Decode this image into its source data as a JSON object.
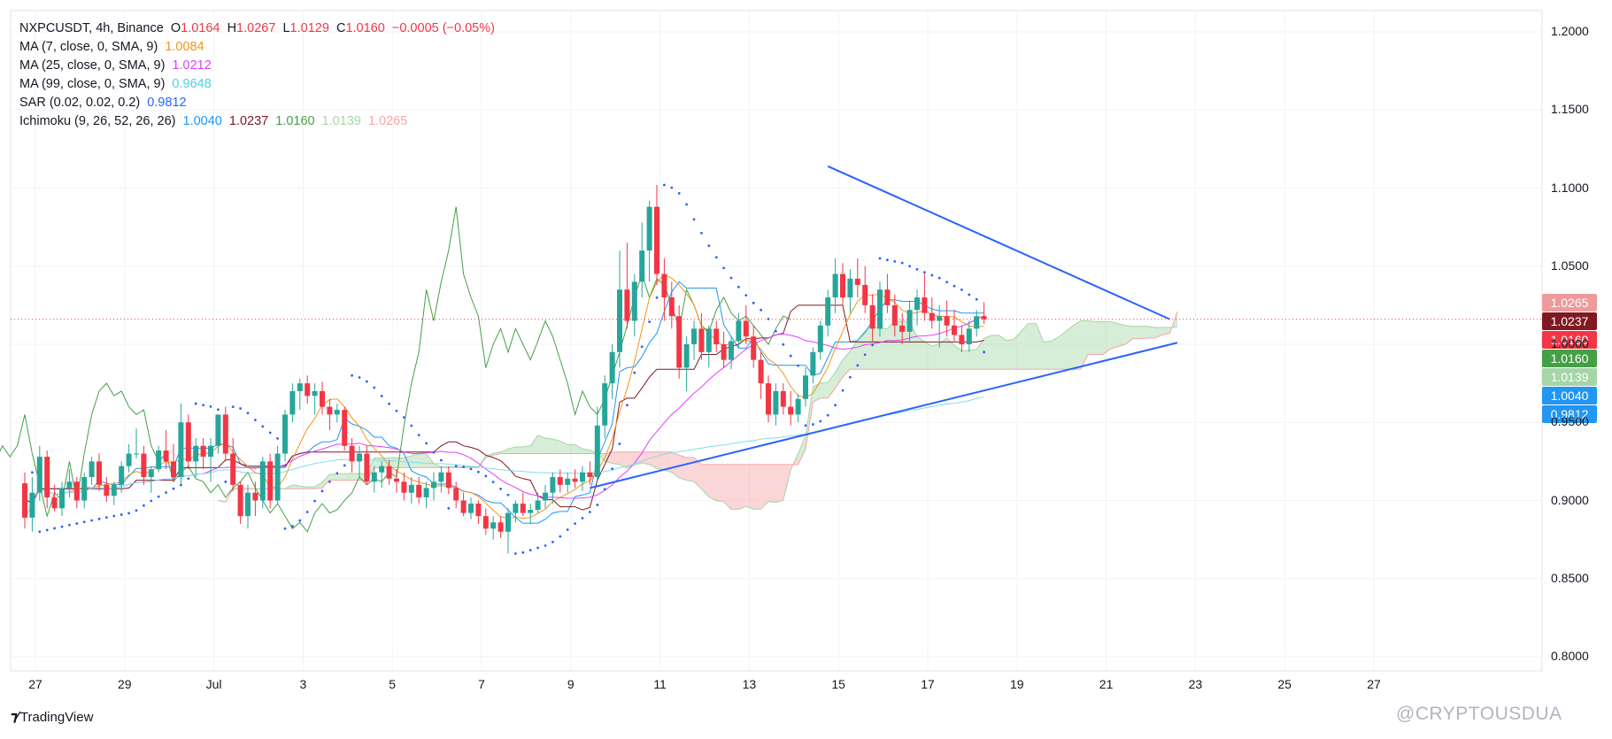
{
  "legend": {
    "symbol": "NXPCUSDT, 4h, Binance",
    "ohlc": {
      "o_label": "O",
      "o": "1.0164",
      "h_label": "H",
      "h": "1.0267",
      "l_label": "L",
      "l": "1.0129",
      "c_label": "C",
      "c": "1.0160",
      "change": "−0.0005 (−0.05%)"
    },
    "indicators": [
      {
        "label": "MA (7, close, 0, SMA, 9)",
        "values": [
          {
            "v": "1.0084",
            "color": "#f7931a"
          }
        ]
      },
      {
        "label": "MA (25, close, 0, SMA, 9)",
        "values": [
          {
            "v": "1.0212",
            "color": "#e040fb"
          }
        ]
      },
      {
        "label": "MA (99, close, 0, SMA, 9)",
        "values": [
          {
            "v": "0.9648",
            "color": "#4dd0e1"
          }
        ]
      },
      {
        "label": "SAR (0.02, 0.02, 0.2)",
        "values": [
          {
            "v": "0.9812",
            "color": "#2962ff"
          }
        ]
      },
      {
        "label": "Ichimoku (9, 26, 52, 26, 26)",
        "values": [
          {
            "v": "1.0040",
            "color": "#2196f3"
          },
          {
            "v": "1.0237",
            "color": "#801922"
          },
          {
            "v": "1.0160",
            "color": "#43a047"
          },
          {
            "v": "1.0139",
            "color": "#a5d6a7"
          },
          {
            "v": "1.0265",
            "color": "#f7a5a5"
          }
        ]
      }
    ]
  },
  "price_tags": [
    {
      "value": "1.0265",
      "bg": "#ef9a9a",
      "price": 1.0265
    },
    {
      "value": "1.0237",
      "bg": "#801922",
      "price": 1.0237
    },
    {
      "value": "1.0160",
      "bg": "#f23645",
      "price": 1.016
    },
    {
      "value": "1.0160",
      "bg": "#43a047",
      "price": 1.016
    },
    {
      "value": "1.0139",
      "bg": "#a5d6a7",
      "price": 1.0139
    },
    {
      "value": "1.0040",
      "bg": "#2196f3",
      "price": 1.004
    },
    {
      "value": "0.9812",
      "bg": "#2196f3",
      "price": 0.9812
    }
  ],
  "brand": {
    "name": "TradingView"
  },
  "watermark": "@CRYPTOUSDUA",
  "chart_data": {
    "type": "candlestick",
    "symbol": "NXPCUSDT",
    "interval": "4h",
    "exchange": "Binance",
    "ylim": [
      0.79,
      1.21
    ],
    "y_ticks": [
      "1.2000",
      "1.1500",
      "1.1000",
      "1.0500",
      "1.0000",
      "0.9500",
      "0.9000",
      "0.8500",
      "0.8000"
    ],
    "x_ticks": [
      "27",
      "29",
      "Jul",
      "3",
      "5",
      "7",
      "9",
      "11",
      "13",
      "15",
      "17",
      "19",
      "21",
      "23",
      "25",
      "27"
    ],
    "colors": {
      "up": "#26a69a",
      "down": "#f23645",
      "trendline": "#2962ff",
      "ma7": "#f7931a",
      "ma25": "#e040fb",
      "ma99": "#80deea",
      "sar": "#2962ff",
      "tenkan": "#2196f3",
      "kijun": "#801922",
      "chikou": "#43a047",
      "cloud_bull": "#a5d6a7",
      "cloud_bear": "#f7a5a5"
    },
    "candles": [
      [
        0.911,
        0.918,
        0.882,
        0.889
      ],
      [
        0.889,
        0.915,
        0.88,
        0.905
      ],
      [
        0.905,
        0.935,
        0.9,
        0.928
      ],
      [
        0.928,
        0.932,
        0.895,
        0.902
      ],
      [
        0.902,
        0.91,
        0.893,
        0.895
      ],
      [
        0.895,
        0.912,
        0.89,
        0.908
      ],
      [
        0.908,
        0.92,
        0.902,
        0.912
      ],
      [
        0.912,
        0.915,
        0.895,
        0.9
      ],
      [
        0.9,
        0.918,
        0.895,
        0.915
      ],
      [
        0.915,
        0.928,
        0.91,
        0.925
      ],
      [
        0.925,
        0.93,
        0.906,
        0.91
      ],
      [
        0.91,
        0.915,
        0.899,
        0.903
      ],
      [
        0.903,
        0.912,
        0.897,
        0.91
      ],
      [
        0.91,
        0.925,
        0.905,
        0.922
      ],
      [
        0.922,
        0.936,
        0.918,
        0.93
      ],
      [
        0.93,
        0.946,
        0.927,
        0.93
      ],
      [
        0.93,
        0.935,
        0.91,
        0.915
      ],
      [
        0.915,
        0.922,
        0.905,
        0.92
      ],
      [
        0.92,
        0.935,
        0.918,
        0.932
      ],
      [
        0.932,
        0.945,
        0.92,
        0.925
      ],
      [
        0.925,
        0.936,
        0.912,
        0.915
      ],
      [
        0.915,
        0.962,
        0.91,
        0.95
      ],
      [
        0.95,
        0.955,
        0.92,
        0.925
      ],
      [
        0.925,
        0.94,
        0.915,
        0.935
      ],
      [
        0.935,
        0.94,
        0.92,
        0.928
      ],
      [
        0.928,
        0.94,
        0.912,
        0.935
      ],
      [
        0.935,
        0.955,
        0.93,
        0.955
      ],
      [
        0.955,
        0.96,
        0.925,
        0.93
      ],
      [
        0.93,
        0.94,
        0.906,
        0.91
      ],
      [
        0.91,
        0.912,
        0.885,
        0.89
      ],
      [
        0.89,
        0.91,
        0.882,
        0.905
      ],
      [
        0.905,
        0.912,
        0.89,
        0.9
      ],
      [
        0.9,
        0.928,
        0.895,
        0.925
      ],
      [
        0.925,
        0.93,
        0.895,
        0.9
      ],
      [
        0.9,
        0.935,
        0.898,
        0.93
      ],
      [
        0.93,
        0.958,
        0.925,
        0.955
      ],
      [
        0.955,
        0.975,
        0.95,
        0.97
      ],
      [
        0.97,
        0.978,
        0.958,
        0.975
      ],
      [
        0.975,
        0.98,
        0.962,
        0.967
      ],
      [
        0.967,
        0.975,
        0.955,
        0.97
      ],
      [
        0.97,
        0.976,
        0.955,
        0.96
      ],
      [
        0.96,
        0.965,
        0.945,
        0.955
      ],
      [
        0.955,
        0.962,
        0.95,
        0.958
      ],
      [
        0.958,
        0.96,
        0.932,
        0.935
      ],
      [
        0.935,
        0.94,
        0.918,
        0.925
      ],
      [
        0.925,
        0.935,
        0.915,
        0.93
      ],
      [
        0.93,
        0.935,
        0.91,
        0.912
      ],
      [
        0.912,
        0.922,
        0.905,
        0.918
      ],
      [
        0.918,
        0.925,
        0.908,
        0.922
      ],
      [
        0.922,
        0.926,
        0.91,
        0.914
      ],
      [
        0.914,
        0.92,
        0.905,
        0.912
      ],
      [
        0.912,
        0.918,
        0.9,
        0.905
      ],
      [
        0.905,
        0.915,
        0.898,
        0.91
      ],
      [
        0.91,
        0.915,
        0.898,
        0.902
      ],
      [
        0.902,
        0.912,
        0.895,
        0.908
      ],
      [
        0.908,
        0.918,
        0.9,
        0.912
      ],
      [
        0.912,
        0.922,
        0.905,
        0.918
      ],
      [
        0.918,
        0.922,
        0.904,
        0.908
      ],
      [
        0.908,
        0.912,
        0.895,
        0.9
      ],
      [
        0.9,
        0.905,
        0.89,
        0.892
      ],
      [
        0.892,
        0.902,
        0.888,
        0.898
      ],
      [
        0.898,
        0.9,
        0.885,
        0.89
      ],
      [
        0.89,
        0.895,
        0.878,
        0.882
      ],
      [
        0.882,
        0.89,
        0.875,
        0.886
      ],
      [
        0.886,
        0.89,
        0.876,
        0.88
      ],
      [
        0.88,
        0.895,
        0.866,
        0.892
      ],
      [
        0.892,
        0.9,
        0.886,
        0.898
      ],
      [
        0.898,
        0.905,
        0.89,
        0.892
      ],
      [
        0.892,
        0.898,
        0.885,
        0.894
      ],
      [
        0.894,
        0.905,
        0.892,
        0.9
      ],
      [
        0.9,
        0.91,
        0.895,
        0.905
      ],
      [
        0.905,
        0.918,
        0.898,
        0.915
      ],
      [
        0.915,
        0.92,
        0.905,
        0.91
      ],
      [
        0.91,
        0.918,
        0.905,
        0.914
      ],
      [
        0.914,
        0.92,
        0.908,
        0.912
      ],
      [
        0.912,
        0.922,
        0.906,
        0.918
      ],
      [
        0.918,
        0.925,
        0.91,
        0.915
      ],
      [
        0.915,
        0.96,
        0.912,
        0.948
      ],
      [
        0.948,
        0.98,
        0.94,
        0.975
      ],
      [
        0.975,
        1.0,
        0.965,
        0.995
      ],
      [
        0.995,
        1.06,
        0.985,
        1.035
      ],
      [
        1.035,
        1.065,
        1.01,
        1.015
      ],
      [
        1.015,
        1.045,
        1.005,
        1.04
      ],
      [
        1.04,
        1.078,
        1.03,
        1.06
      ],
      [
        1.06,
        1.092,
        1.04,
        1.088
      ],
      [
        1.088,
        1.102,
        1.038,
        1.045
      ],
      [
        1.045,
        1.055,
        1.015,
        1.03
      ],
      [
        1.03,
        1.04,
        1.01,
        1.018
      ],
      [
        1.018,
        1.025,
        0.978,
        0.985
      ],
      [
        0.985,
        1.005,
        0.97,
        1.0
      ],
      [
        1.0,
        1.015,
        0.99,
        1.01
      ],
      [
        1.01,
        1.02,
        0.99,
        0.995
      ],
      [
        0.995,
        1.012,
        0.985,
        1.01
      ],
      [
        1.01,
        1.015,
        0.995,
        1.0
      ],
      [
        1.0,
        1.008,
        0.985,
        0.99
      ],
      [
        0.99,
        1.005,
        0.984,
        1.002
      ],
      [
        1.002,
        1.02,
        0.998,
        1.015
      ],
      [
        1.015,
        1.025,
        1.0,
        1.005
      ],
      [
        1.005,
        1.012,
        0.985,
        0.99
      ],
      [
        0.99,
        0.995,
        0.965,
        0.975
      ],
      [
        0.975,
        0.98,
        0.95,
        0.955
      ],
      [
        0.955,
        0.975,
        0.948,
        0.97
      ],
      [
        0.97,
        0.975,
        0.955,
        0.96
      ],
      [
        0.96,
        0.97,
        0.948,
        0.955
      ],
      [
        0.955,
        0.968,
        0.95,
        0.965
      ],
      [
        0.965,
        0.985,
        0.96,
        0.98
      ],
      [
        0.98,
        0.998,
        0.975,
        0.995
      ],
      [
        0.995,
        1.015,
        0.99,
        1.012
      ],
      [
        1.012,
        1.035,
        1.005,
        1.03
      ],
      [
        1.03,
        1.055,
        1.02,
        1.045
      ],
      [
        1.045,
        1.052,
        1.025,
        1.03
      ],
      [
        1.03,
        1.048,
        1.02,
        1.042
      ],
      [
        1.042,
        1.055,
        1.03,
        1.038
      ],
      [
        1.038,
        1.05,
        1.02,
        1.025
      ],
      [
        1.025,
        1.032,
        1.002,
        1.01
      ],
      [
        1.01,
        1.04,
        1.005,
        1.035
      ],
      [
        1.035,
        1.045,
        1.02,
        1.025
      ],
      [
        1.025,
        1.032,
        1.005,
        1.012
      ],
      [
        1.012,
        1.02,
        1.0,
        1.008
      ],
      [
        1.008,
        1.028,
        1.002,
        1.022
      ],
      [
        1.022,
        1.035,
        1.012,
        1.03
      ],
      [
        1.03,
        1.045,
        1.015,
        1.02
      ],
      [
        1.02,
        1.03,
        1.01,
        1.015
      ],
      [
        1.015,
        1.025,
        0.998,
        1.018
      ],
      [
        1.018,
        1.028,
        1.005,
        1.012
      ],
      [
        1.012,
        1.022,
        1.002,
        1.006
      ],
      [
        1.006,
        1.012,
        0.995,
        1.0
      ],
      [
        1.0,
        1.015,
        0.995,
        1.01
      ],
      [
        1.01,
        1.022,
        1.005,
        1.018
      ],
      [
        1.018,
        1.027,
        1.013,
        1.016
      ]
    ],
    "trendlines": [
      {
        "name": "upper",
        "from": [
          108,
          1.114
        ],
        "to": [
          154,
          1.016
        ]
      },
      {
        "name": "lower",
        "from": [
          76,
          0.908
        ],
        "to": [
          155,
          1.001
        ]
      }
    ]
  }
}
